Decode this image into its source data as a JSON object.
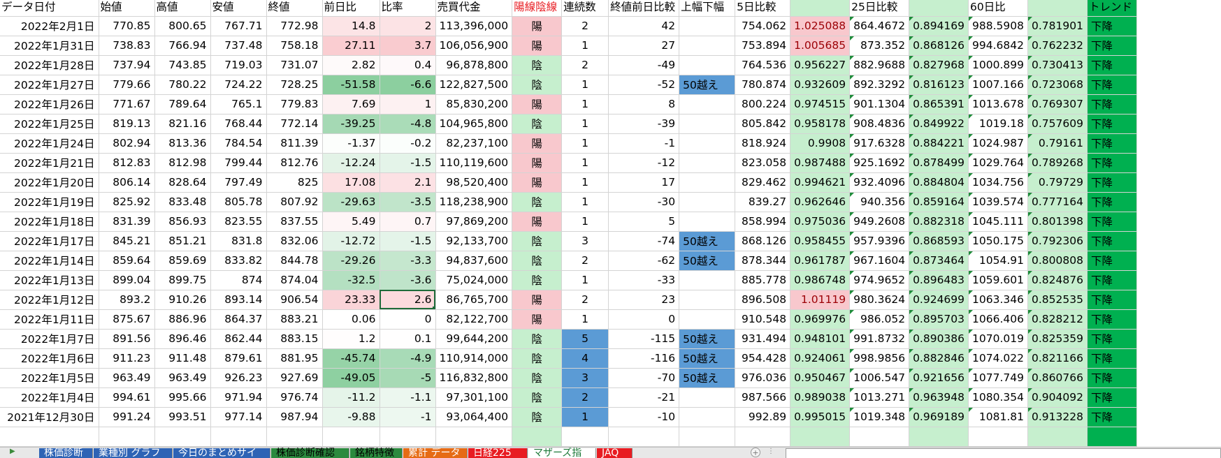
{
  "headers": [
    "データ日付",
    "始値",
    "高値",
    "安値",
    "終値",
    "前日比",
    "比率",
    "売買代金",
    "陽線陰線",
    "連続数",
    "終値前日比較",
    "上幅下幅",
    "5日比較",
    "",
    "25日比較",
    "",
    "60日比",
    "",
    "トレンド"
  ],
  "rows": [
    [
      "2022年2月1日",
      "770.85",
      "800.65",
      "767.71",
      "772.98",
      "14.8",
      "2",
      "113,396,000",
      "陽",
      "2",
      "42",
      "",
      "754.062",
      "1.025088",
      "864.4672",
      "0.894169",
      "988.5908",
      "0.781901",
      "下降"
    ],
    [
      "2022年1月31日",
      "738.83",
      "766.94",
      "737.48",
      "758.18",
      "27.11",
      "3.7",
      "106,056,900",
      "陽",
      "1",
      "27",
      "",
      "753.894",
      "1.005685",
      "873.352",
      "0.868126",
      "994.6842",
      "0.762232",
      "下降"
    ],
    [
      "2022年1月28日",
      "737.94",
      "743.85",
      "719.03",
      "731.07",
      "2.82",
      "0.4",
      "96,878,800",
      "陰",
      "2",
      "-49",
      "",
      "764.536",
      "0.956227",
      "882.9688",
      "0.827968",
      "1000.899",
      "0.730413",
      "下降"
    ],
    [
      "2022年1月27日",
      "779.66",
      "780.22",
      "724.22",
      "728.25",
      "-51.58",
      "-6.6",
      "122,827,500",
      "陰",
      "1",
      "-52",
      "50越え",
      "780.874",
      "0.932609",
      "892.3292",
      "0.816123",
      "1007.166",
      "0.723068",
      "下降"
    ],
    [
      "2022年1月26日",
      "771.67",
      "789.64",
      "765.1",
      "779.83",
      "7.69",
      "1",
      "85,830,200",
      "陽",
      "1",
      "8",
      "",
      "800.224",
      "0.974515",
      "901.1304",
      "0.865391",
      "1013.678",
      "0.769307",
      "下降"
    ],
    [
      "2022年1月25日",
      "819.13",
      "821.16",
      "768.44",
      "772.14",
      "-39.25",
      "-4.8",
      "104,965,800",
      "陰",
      "1",
      "-39",
      "",
      "805.842",
      "0.958178",
      "908.4836",
      "0.849922",
      "1019.18",
      "0.757609",
      "下降"
    ],
    [
      "2022年1月24日",
      "802.94",
      "813.36",
      "784.54",
      "811.39",
      "-1.37",
      "-0.2",
      "82,237,100",
      "陽",
      "1",
      "-1",
      "",
      "818.924",
      "0.9908",
      "917.6328",
      "0.884221",
      "1024.987",
      "0.79161",
      "下降"
    ],
    [
      "2022年1月21日",
      "812.83",
      "812.98",
      "799.44",
      "812.76",
      "-12.24",
      "-1.5",
      "110,119,600",
      "陽",
      "1",
      "-12",
      "",
      "823.058",
      "0.987488",
      "925.1692",
      "0.878499",
      "1029.764",
      "0.789268",
      "下降"
    ],
    [
      "2022年1月20日",
      "806.14",
      "828.64",
      "797.49",
      "825",
      "17.08",
      "2.1",
      "98,520,400",
      "陽",
      "1",
      "17",
      "",
      "829.462",
      "0.994621",
      "932.4096",
      "0.884804",
      "1034.756",
      "0.79729",
      "下降"
    ],
    [
      "2022年1月19日",
      "825.92",
      "833.48",
      "805.78",
      "807.92",
      "-29.63",
      "-3.5",
      "118,238,900",
      "陰",
      "1",
      "-30",
      "",
      "839.27",
      "0.962646",
      "940.356",
      "0.859164",
      "1039.574",
      "0.777164",
      "下降"
    ],
    [
      "2022年1月18日",
      "831.39",
      "856.93",
      "823.55",
      "837.55",
      "5.49",
      "0.7",
      "97,869,200",
      "陽",
      "1",
      "5",
      "",
      "858.994",
      "0.975036",
      "949.2608",
      "0.882318",
      "1045.111",
      "0.801398",
      "下降"
    ],
    [
      "2022年1月17日",
      "845.21",
      "851.21",
      "831.8",
      "832.06",
      "-12.72",
      "-1.5",
      "92,133,700",
      "陰",
      "3",
      "-74",
      "50越え",
      "868.126",
      "0.958455",
      "957.9396",
      "0.868593",
      "1050.175",
      "0.792306",
      "下降"
    ],
    [
      "2022年1月14日",
      "859.64",
      "859.69",
      "833.82",
      "844.78",
      "-29.26",
      "-3.3",
      "94,837,600",
      "陰",
      "2",
      "-62",
      "50越え",
      "878.344",
      "0.961787",
      "967.1604",
      "0.873464",
      "1054.91",
      "0.800808",
      "下降"
    ],
    [
      "2022年1月13日",
      "899.04",
      "899.75",
      "874",
      "874.04",
      "-32.5",
      "-3.6",
      "75,024,000",
      "陰",
      "1",
      "-33",
      "",
      "885.778",
      "0.986748",
      "974.9652",
      "0.896483",
      "1059.601",
      "0.824876",
      "下降"
    ],
    [
      "2022年1月12日",
      "893.2",
      "910.26",
      "893.14",
      "906.54",
      "23.33",
      "2.6",
      "86,765,700",
      "陽",
      "2",
      "23",
      "",
      "896.508",
      "1.01119",
      "980.3624",
      "0.924699",
      "1063.346",
      "0.852535",
      "下降"
    ],
    [
      "2022年1月11日",
      "875.67",
      "886.96",
      "864.37",
      "883.21",
      "0.06",
      "0",
      "82,122,700",
      "陽",
      "1",
      "0",
      "",
      "910.548",
      "0.969976",
      "986.052",
      "0.895703",
      "1066.406",
      "0.828212",
      "下降"
    ],
    [
      "2022年1月7日",
      "891.56",
      "896.46",
      "862.44",
      "883.15",
      "1.2",
      "0.1",
      "99,644,200",
      "陰",
      "5",
      "-115",
      "50越え",
      "931.494",
      "0.948101",
      "991.8732",
      "0.890386",
      "1070.019",
      "0.825359",
      "下降"
    ],
    [
      "2022年1月6日",
      "911.23",
      "911.48",
      "879.61",
      "881.95",
      "-45.74",
      "-4.9",
      "110,914,000",
      "陰",
      "4",
      "-116",
      "50越え",
      "954.428",
      "0.924061",
      "998.9856",
      "0.882846",
      "1074.022",
      "0.821166",
      "下降"
    ],
    [
      "2022年1月5日",
      "963.49",
      "963.49",
      "926.23",
      "927.69",
      "-49.05",
      "-5",
      "116,832,800",
      "陰",
      "3",
      "-70",
      "50越え",
      "976.036",
      "0.950467",
      "1006.547",
      "0.921656",
      "1077.749",
      "0.860766",
      "下降"
    ],
    [
      "2022年1月4日",
      "994.61",
      "995.66",
      "971.94",
      "976.74",
      "-11.2",
      "-1.1",
      "97,301,100",
      "陰",
      "2",
      "-21",
      "",
      "987.566",
      "0.989038",
      "1013.271",
      "0.963948",
      "1080.354",
      "0.904092",
      "下降"
    ],
    [
      "2021年12月30日",
      "991.24",
      "993.51",
      "977.14",
      "987.94",
      "-9.88",
      "-1",
      "93,064,400",
      "陰",
      "1",
      "-10",
      "",
      "992.89",
      "0.995015",
      "1019.348",
      "0.969189",
      "1081.81",
      "0.913228",
      "下降"
    ]
  ],
  "tabs": [
    {
      "label": "株価診断",
      "bg": "#2e63b5",
      "fg": "#ffffff"
    },
    {
      "label": "業種別 グラフ",
      "bg": "#2e63b5",
      "fg": "#ffffff"
    },
    {
      "label": "今日のまとめサイト",
      "bg": "#2e63b5",
      "fg": "#ffffff"
    },
    {
      "label": "株価診断確認",
      "bg": "#2b8a3e",
      "fg": "#000000"
    },
    {
      "label": "銘柄特徴",
      "bg": "#2b8a3e",
      "fg": "#000000"
    },
    {
      "label": "累計 データ",
      "bg": "#e66b15",
      "fg": "#ffffff"
    },
    {
      "label": "日経225",
      "bg": "#e81c22",
      "fg": "#ffffff"
    },
    {
      "label": "マザーズ指標",
      "bg": "#ffffff",
      "fg": "#1e7a3a"
    },
    {
      "label": "JAQ",
      "bg": "#e81c22",
      "fg": "#ffffff"
    }
  ],
  "colors": {
    "you_sen": "#f8c8cd",
    "in_sen": "#c6efce",
    "renzoku_blue": "#5b9bd5",
    "trend_green": "#00b050",
    "ratio_green_col": "#c6efce",
    "ratio_red_high": "#f8c8cd",
    "grid": "#d4d4d4"
  },
  "icons": {
    "add_sheet": "plus-circle-icon",
    "nav_left": "triangle-left-icon"
  }
}
